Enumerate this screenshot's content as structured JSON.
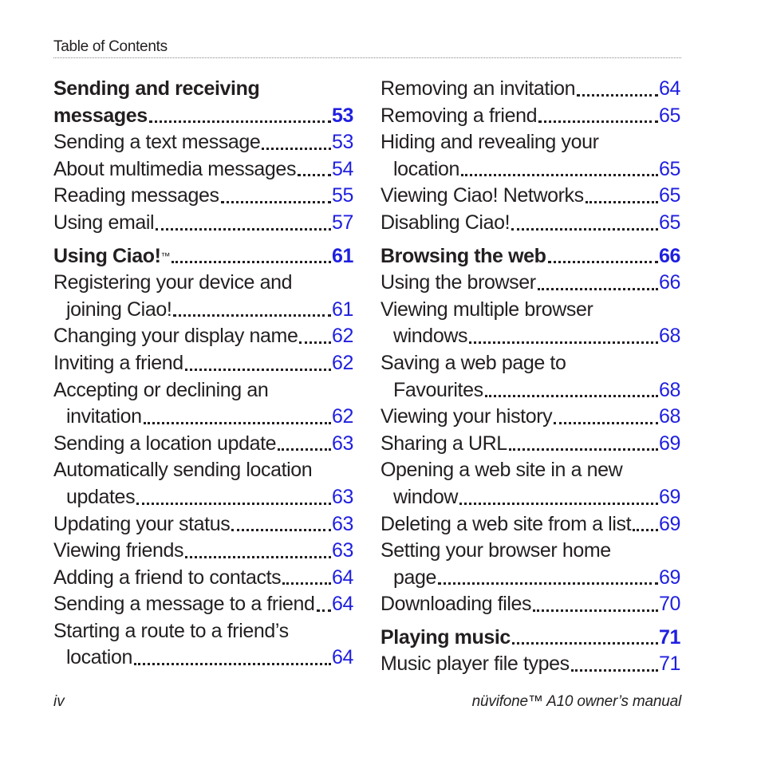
{
  "header": {
    "title": "Table of Contents"
  },
  "left_column": [
    {
      "type": "head2",
      "line1": "Sending and receiving",
      "line2": "messages",
      "page": "53"
    },
    {
      "type": "item",
      "label": "Sending a text message",
      "page": "53"
    },
    {
      "type": "item",
      "label": "About multimedia messages",
      "page": "54"
    },
    {
      "type": "item",
      "label": "Reading messages",
      "page": "55"
    },
    {
      "type": "item",
      "label": "Using email",
      "page": "57"
    },
    {
      "type": "head",
      "label": "Using Ciao!",
      "tm": "™",
      "page": "61"
    },
    {
      "type": "item2",
      "line1": "Registering your device and",
      "line2": "joining Ciao!",
      "page": "61"
    },
    {
      "type": "item",
      "label": "Changing your display name",
      "page": "62"
    },
    {
      "type": "item",
      "label": "Inviting a friend",
      "page": "62"
    },
    {
      "type": "item2",
      "line1": "Accepting or declining an",
      "line2": "invitation",
      "page": "62"
    },
    {
      "type": "item",
      "label": "Sending a location update",
      "page": "63"
    },
    {
      "type": "item2",
      "line1": "Automatically sending location",
      "line2": "updates",
      "page": "63"
    },
    {
      "type": "item",
      "label": "Updating your status",
      "page": "63"
    },
    {
      "type": "item",
      "label": "Viewing friends",
      "page": "63"
    },
    {
      "type": "item",
      "label": "Adding a friend to contacts",
      "page": "64"
    },
    {
      "type": "item",
      "label": "Sending a message to a friend",
      "page": "64"
    },
    {
      "type": "item2",
      "line1": "Starting a route to a friend’s",
      "line2": "location",
      "page": "64"
    }
  ],
  "right_column": [
    {
      "type": "item",
      "label": "Removing an invitation",
      "page": "64"
    },
    {
      "type": "item",
      "label": "Removing a friend",
      "page": "65"
    },
    {
      "type": "item2",
      "line1": "Hiding and revealing your",
      "line2": "location",
      "page": "65"
    },
    {
      "type": "item",
      "label": "Viewing Ciao! Networks",
      "page": "65"
    },
    {
      "type": "item",
      "label": "Disabling Ciao!",
      "page": "65"
    },
    {
      "type": "head",
      "label": "Browsing the web",
      "page": "66"
    },
    {
      "type": "item",
      "label": "Using the browser",
      "page": "66"
    },
    {
      "type": "item2",
      "line1": "Viewing multiple browser",
      "line2": "windows",
      "page": "68"
    },
    {
      "type": "item2",
      "line1": "Saving a web page to",
      "line2": "Favourites",
      "page": "68"
    },
    {
      "type": "item",
      "label": "Viewing your history",
      "page": "68"
    },
    {
      "type": "item",
      "label": "Sharing a URL",
      "page": "69"
    },
    {
      "type": "item2",
      "line1": "Opening a web site in a new",
      "line2": "window",
      "page": "69"
    },
    {
      "type": "item",
      "label": "Deleting a web site from a list",
      "page": "69"
    },
    {
      "type": "item2",
      "line1": "Setting your browser home",
      "line2": "page",
      "page": "69"
    },
    {
      "type": "item",
      "label": "Downloading files",
      "page": "70"
    },
    {
      "type": "head",
      "label": "Playing music",
      "page": "71"
    },
    {
      "type": "item",
      "label": "Music player file types",
      "page": "71"
    }
  ],
  "footer": {
    "page_number": "iv",
    "manual_title": "nüvifone™ A10 owner’s manual"
  }
}
